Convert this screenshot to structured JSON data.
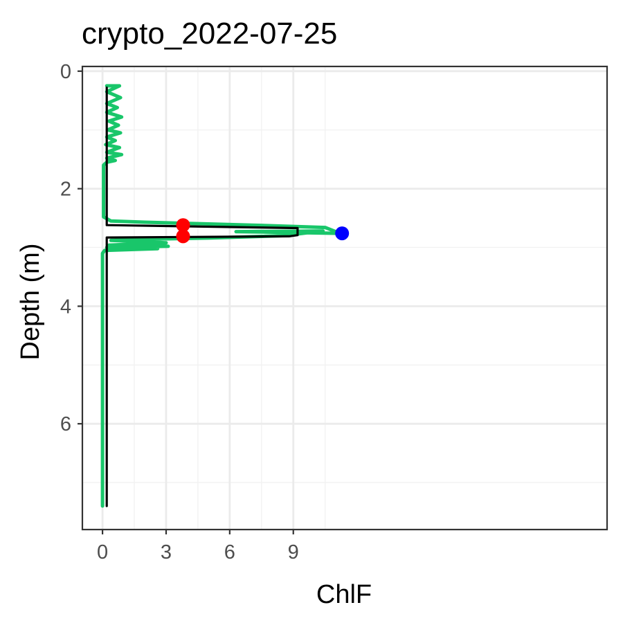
{
  "chart_data": {
    "type": "line",
    "title": "crypto_2022-07-25",
    "xlabel": "ChlF",
    "ylabel": "Depth (m)",
    "xlim": [
      -0.95,
      23.8
    ],
    "ylim": [
      7.8,
      -0.08
    ],
    "y_reversed": true,
    "x_ticks": [
      0,
      3,
      6,
      9
    ],
    "y_ticks": [
      0,
      2,
      4,
      6
    ],
    "grid": true,
    "legend": "none",
    "colors": {
      "profile": "#19c66a",
      "fit": "#000000",
      "peak_bounds": "#ff0000",
      "max_point": "#0000ff",
      "grid_major": "#ebebeb",
      "grid_minor": "#f2f2f2",
      "panel_border": "#333333",
      "tick_text": "#4d4d4d"
    },
    "series": [
      {
        "x": [
          0.2,
          0.8,
          0.2,
          0.85,
          0.2,
          0.7,
          0.2,
          0.9,
          0.3,
          0.75,
          0.25,
          0.85,
          0.2,
          0.6,
          0.15,
          0.8,
          0.2,
          0.9,
          0.2,
          0.6,
          0.2,
          0.05,
          0.05,
          0.05,
          0.05,
          0.4,
          2.0,
          5.0,
          8.0,
          10.5,
          11.2,
          6.3,
          10.4,
          8.5,
          5.0,
          2.0,
          0.4,
          3.0,
          0.3,
          3.1,
          0.2,
          2.6,
          0.1,
          0.0,
          0.0,
          0.0
        ],
        "y": [
          0.25,
          0.25,
          0.35,
          0.45,
          0.55,
          0.62,
          0.7,
          0.78,
          0.85,
          0.92,
          1.0,
          1.05,
          1.12,
          1.18,
          1.25,
          1.3,
          1.38,
          1.42,
          1.48,
          1.52,
          1.55,
          1.6,
          2.0,
          2.3,
          2.48,
          2.55,
          2.57,
          2.6,
          2.63,
          2.66,
          2.76,
          2.73,
          2.72,
          2.8,
          2.84,
          2.86,
          2.88,
          2.92,
          2.96,
          2.98,
          3.0,
          3.02,
          3.05,
          3.1,
          5.0,
          7.4
        ]
      },
      {
        "x": [
          0.2,
          0.2,
          9.2,
          9.2,
          8.8,
          0.2,
          0.2
        ],
        "y": [
          0.28,
          2.62,
          2.67,
          2.79,
          2.81,
          2.83,
          7.4
        ]
      }
    ],
    "points": [
      {
        "x": 3.8,
        "y": 2.62
      },
      {
        "x": 3.8,
        "y": 2.81
      },
      {
        "x": 11.3,
        "y": 2.76
      }
    ]
  }
}
